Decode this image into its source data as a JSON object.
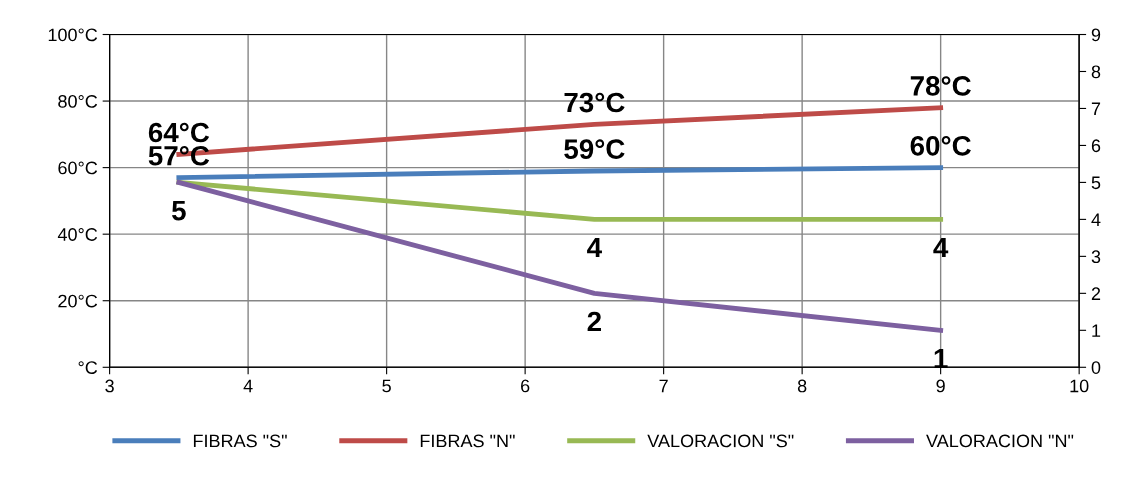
{
  "chart_data": {
    "type": "line",
    "x": [
      3.5,
      6.5,
      9
    ],
    "series": [
      {
        "name": "FIBRAS \"S\"",
        "color": "#4a7ebb",
        "values": [
          57,
          59,
          60
        ],
        "value_labels": [
          "57°C",
          "59°C",
          "60°C"
        ]
      },
      {
        "name": "FIBRAS \"N\"",
        "color": "#be4b48",
        "values": [
          64,
          73,
          78
        ],
        "value_labels": [
          "64°C",
          "73°C",
          "78°C"
        ]
      },
      {
        "name": "VALORACION \"S\"",
        "color": "#98b954",
        "values": [
          5,
          4,
          4
        ],
        "axis": "y2",
        "value_labels": [
          "5",
          "4",
          "4"
        ]
      },
      {
        "name": "VALORACION \"N\"",
        "color": "#7d60a0",
        "values": [
          5,
          2,
          1
        ],
        "axis": "y2",
        "value_labels": [
          null,
          "2",
          "1"
        ]
      }
    ],
    "xlim": [
      3,
      10
    ],
    "xticks": [
      3,
      4,
      5,
      6,
      7,
      8,
      9,
      10
    ],
    "ylim": [
      0,
      100
    ],
    "yticks": [
      {
        "value": 0,
        "label": "°C"
      },
      {
        "value": 20,
        "label": "20°C"
      },
      {
        "value": 40,
        "label": "40°C"
      },
      {
        "value": 60,
        "label": "60°C"
      },
      {
        "value": 80,
        "label": "80°C"
      },
      {
        "value": 100,
        "label": "100°C"
      }
    ],
    "y2lim": [
      0,
      9
    ],
    "y2ticks": [
      0,
      1,
      2,
      3,
      4,
      5,
      6,
      7,
      8,
      9
    ],
    "grid": true,
    "legend": "bottom",
    "marker": "none",
    "line_style": "solid"
  }
}
